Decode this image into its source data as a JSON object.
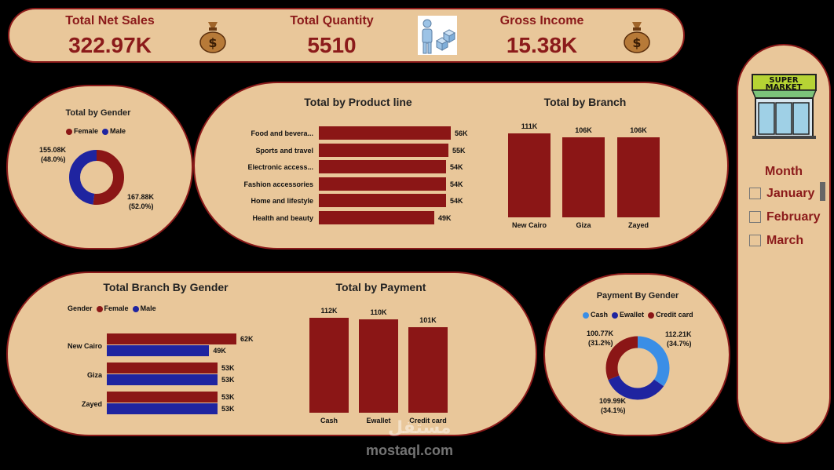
{
  "kpis": {
    "net_sales": {
      "label": "Total Net Sales",
      "value": "322.97K"
    },
    "quantity": {
      "label": "Total Quantity",
      "value": "5510"
    },
    "gross_income": {
      "label": "Gross Income",
      "value": "15.38K"
    }
  },
  "colors": {
    "panel": "#e9c79a",
    "border": "#8b1a1a",
    "female": "#8b1616",
    "male": "#1f24a0",
    "cash": "#3a8ee6"
  },
  "gender_chart": {
    "title": "Total by Gender",
    "legend": [
      "Female",
      "Male"
    ],
    "female_label": "167.88K",
    "female_pct": "(52.0%)",
    "male_label": "155.08K",
    "male_pct": "(48.0%)"
  },
  "product_chart": {
    "title": "Total by Product line",
    "rows": [
      {
        "label": "Food and bevera...",
        "value": "56K"
      },
      {
        "label": "Sports and travel",
        "value": "55K"
      },
      {
        "label": "Electronic access...",
        "value": "54K"
      },
      {
        "label": "Fashion accessories",
        "value": "54K"
      },
      {
        "label": "Home and lifestyle",
        "value": "54K"
      },
      {
        "label": "Health and beauty",
        "value": "49K"
      }
    ]
  },
  "branch_chart": {
    "title": "Total by Branch",
    "bars": [
      {
        "label": "New Cairo",
        "value": "111K"
      },
      {
        "label": "Giza",
        "value": "106K"
      },
      {
        "label": "Zayed",
        "value": "106K"
      }
    ]
  },
  "branch_gender_chart": {
    "title": "Total Branch By Gender",
    "legend_title": "Gender",
    "legend": [
      "Female",
      "Male"
    ],
    "rows": [
      {
        "label": "New Cairo",
        "female": "62K",
        "male": "49K"
      },
      {
        "label": "Giza",
        "female": "53K",
        "male": "53K"
      },
      {
        "label": "Zayed",
        "female": "53K",
        "male": "53K"
      }
    ]
  },
  "payment_chart": {
    "title": "Total by Payment",
    "bars": [
      {
        "label": "Cash",
        "value": "112K"
      },
      {
        "label": "Ewallet",
        "value": "110K"
      },
      {
        "label": "Credit card",
        "value": "101K"
      }
    ]
  },
  "payment_gender_chart": {
    "title": "Payment By Gender",
    "legend": [
      "Cash",
      "Ewallet",
      "Credit card"
    ],
    "cash_label": "112.21K",
    "cash_pct": "(34.7%)",
    "ewallet_label": "109.99K",
    "ewallet_pct": "(34.1%)",
    "credit_label": "100.77K",
    "credit_pct": "(31.2%)"
  },
  "slicer": {
    "logo_line1": "SUPER",
    "logo_line2": "MARKET",
    "title": "Month",
    "items": [
      "January",
      "February",
      "March"
    ]
  },
  "watermark": {
    "arabic": "مستقل",
    "latin": "mostaql.com"
  },
  "chart_data": [
    {
      "type": "pie",
      "title": "Total by Gender",
      "labels": [
        "Female",
        "Male"
      ],
      "values": [
        167.88,
        155.08
      ]
    },
    {
      "type": "bar",
      "title": "Total by Product line",
      "categories": [
        "Food and bevera...",
        "Sports and travel",
        "Electronic access...",
        "Fashion accessories",
        "Home and lifestyle",
        "Health and beauty"
      ],
      "values": [
        56,
        55,
        54,
        54,
        54,
        49
      ]
    },
    {
      "type": "bar",
      "title": "Total by Branch",
      "categories": [
        "New Cairo",
        "Giza",
        "Zayed"
      ],
      "values": [
        111,
        106,
        106
      ]
    },
    {
      "type": "bar",
      "title": "Total Branch By Gender",
      "categories": [
        "New Cairo",
        "Giza",
        "Zayed"
      ],
      "series": [
        {
          "name": "Female",
          "values": [
            62,
            53,
            53
          ]
        },
        {
          "name": "Male",
          "values": [
            49,
            53,
            53
          ]
        }
      ]
    },
    {
      "type": "bar",
      "title": "Total by Payment",
      "categories": [
        "Cash",
        "Ewallet",
        "Credit card"
      ],
      "values": [
        112,
        110,
        101
      ]
    },
    {
      "type": "pie",
      "title": "Payment By Gender",
      "labels": [
        "Cash",
        "Ewallet",
        "Credit card"
      ],
      "values": [
        112.21,
        109.99,
        100.77
      ]
    }
  ]
}
